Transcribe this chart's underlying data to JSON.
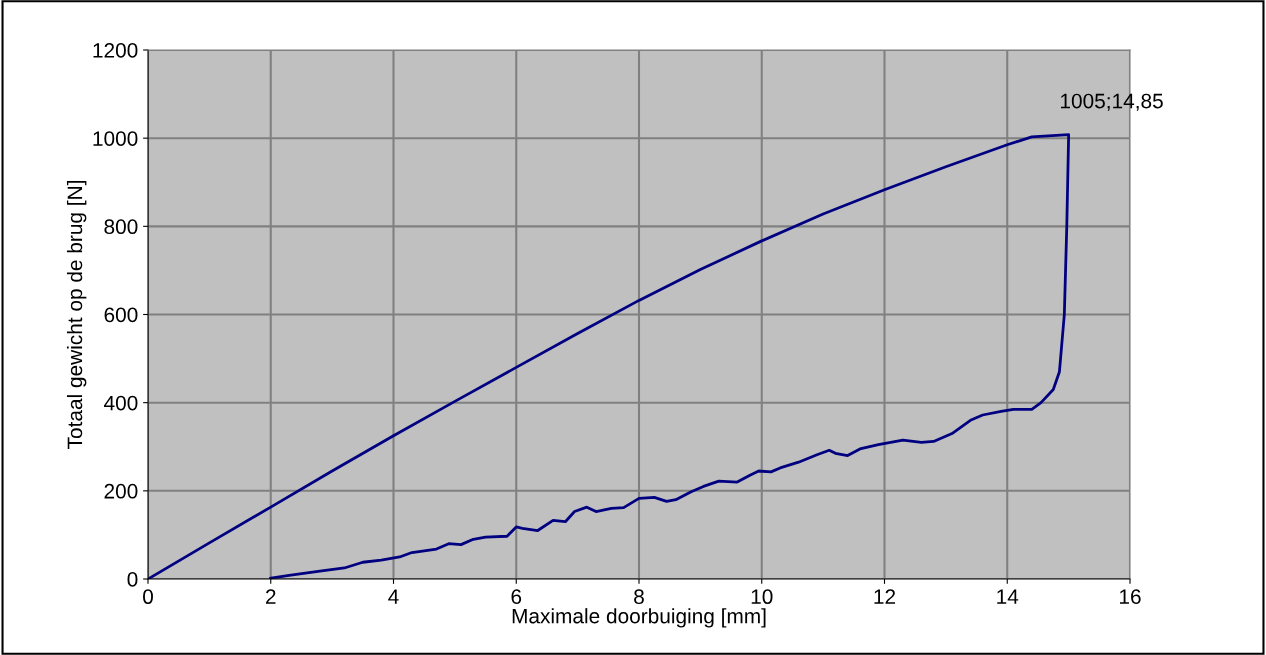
{
  "chart_data": {
    "type": "line",
    "xlabel": "Maximale doorbuiging [mm]",
    "ylabel": "Totaal gewicht op de brug [N]",
    "xlim": [
      0,
      16
    ],
    "xticks": [
      0,
      2,
      4,
      6,
      8,
      10,
      12,
      14,
      16
    ],
    "ylim": [
      0,
      1200
    ],
    "yticks": [
      0,
      200,
      400,
      600,
      800,
      1000,
      1200
    ],
    "grid": true,
    "marker": "none",
    "line_style": "solid",
    "annotations": [
      {
        "text": "1005;14,85",
        "x": 14.85,
        "y": 1005
      }
    ],
    "series": [
      {
        "color": "#000080",
        "x": [
          0,
          1,
          2,
          3,
          4,
          5,
          6,
          7,
          8,
          9,
          10,
          11,
          12,
          13,
          14,
          14.4,
          15.0,
          15.0,
          14.97,
          14.93,
          14.85,
          14.75,
          14.55,
          14.4,
          14.1,
          13.9,
          13.6,
          13.4,
          13.1,
          12.8,
          12.6,
          12.3,
          11.9,
          11.6,
          11.4,
          11.2,
          11.1,
          10.9,
          10.6,
          10.3,
          10.15,
          9.95,
          9.8,
          9.6,
          9.3,
          9.05,
          8.85,
          8.6,
          8.45,
          8.25,
          8.0,
          7.75,
          7.55,
          7.3,
          7.15,
          6.95,
          6.8,
          6.6,
          6.35,
          6.1,
          6.0,
          5.85,
          5.5,
          5.3,
          5.1,
          4.9,
          4.7,
          4.3,
          4.1,
          3.8,
          3.5,
          3.2,
          2.8,
          2.3,
          2.0
        ],
        "values": [
          0,
          82,
          163,
          245,
          325,
          403,
          480,
          557,
          632,
          702,
          767,
          828,
          883,
          935,
          985,
          1003,
          1008,
          1005,
          800,
          600,
          470,
          430,
          400,
          385,
          385,
          380,
          372,
          360,
          330,
          312,
          310,
          315,
          305,
          295,
          280,
          285,
          292,
          282,
          265,
          252,
          243,
          245,
          235,
          220,
          222,
          210,
          198,
          180,
          176,
          185,
          183,
          162,
          160,
          153,
          163,
          153,
          130,
          133,
          110,
          115,
          118,
          97,
          95,
          90,
          78,
          80,
          68,
          60,
          50,
          43,
          38,
          25,
          18,
          8,
          2
        ]
      }
    ]
  }
}
